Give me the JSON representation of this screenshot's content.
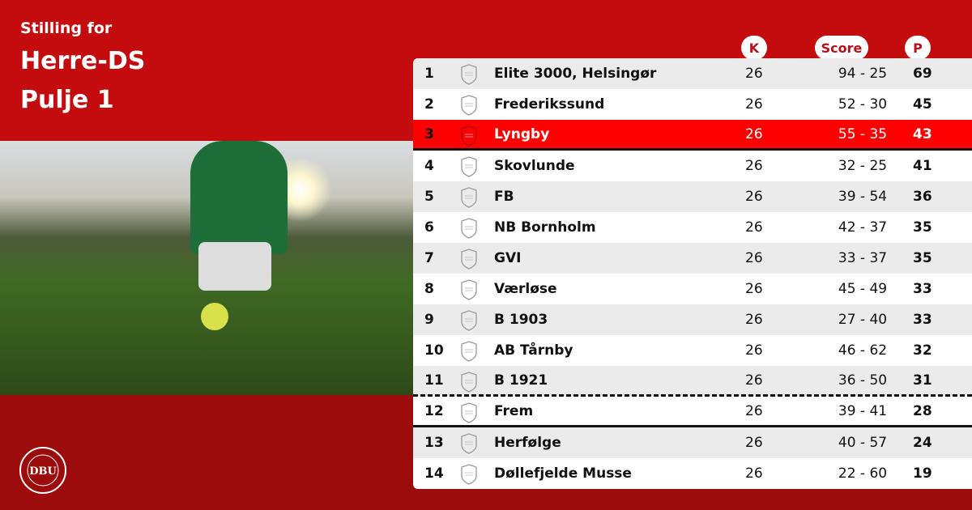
{
  "header": {
    "line1": "Stilling for",
    "line2": "Herre-DS",
    "line3": "Pulje 1"
  },
  "logo": {
    "text": "DANSK BOLDSPIL-UNION 1889 DBU"
  },
  "columns": {
    "k": "K",
    "score": "Score",
    "p": "P"
  },
  "colors": {
    "primary": "#c40c0f",
    "highlight": "#ff0000",
    "dark": "#9c0c0c"
  },
  "rows": [
    {
      "pos": "1",
      "team": "Elite 3000, Helsingør",
      "k": "26",
      "score": "94 - 25",
      "p": "69"
    },
    {
      "pos": "2",
      "team": "Frederikssund",
      "k": "26",
      "score": "52 - 30",
      "p": "45"
    },
    {
      "pos": "3",
      "team": "Lyngby",
      "k": "26",
      "score": "55 - 35",
      "p": "43",
      "highlight": true
    },
    {
      "pos": "4",
      "team": "Skovlunde",
      "k": "26",
      "score": "32 - 25",
      "p": "41"
    },
    {
      "pos": "5",
      "team": "FB",
      "k": "26",
      "score": "39 - 54",
      "p": "36"
    },
    {
      "pos": "6",
      "team": "NB Bornholm",
      "k": "26",
      "score": "42 - 37",
      "p": "35"
    },
    {
      "pos": "7",
      "team": "GVI",
      "k": "26",
      "score": "33 - 37",
      "p": "35"
    },
    {
      "pos": "8",
      "team": "Værløse",
      "k": "26",
      "score": "45 - 49",
      "p": "33"
    },
    {
      "pos": "9",
      "team": "B 1903",
      "k": "26",
      "score": "27 - 40",
      "p": "33"
    },
    {
      "pos": "10",
      "team": "AB Tårnby",
      "k": "26",
      "score": "46 - 62",
      "p": "32"
    },
    {
      "pos": "11",
      "team": "B 1921",
      "k": "26",
      "score": "36 - 50",
      "p": "31"
    },
    {
      "pos": "12",
      "team": "Frem",
      "k": "26",
      "score": "39 - 41",
      "p": "28"
    },
    {
      "pos": "13",
      "team": "Herfølge",
      "k": "26",
      "score": "40 - 57",
      "p": "24"
    },
    {
      "pos": "14",
      "team": "Døllefjelde Musse",
      "k": "26",
      "score": "22 - 60",
      "p": "19"
    }
  ]
}
